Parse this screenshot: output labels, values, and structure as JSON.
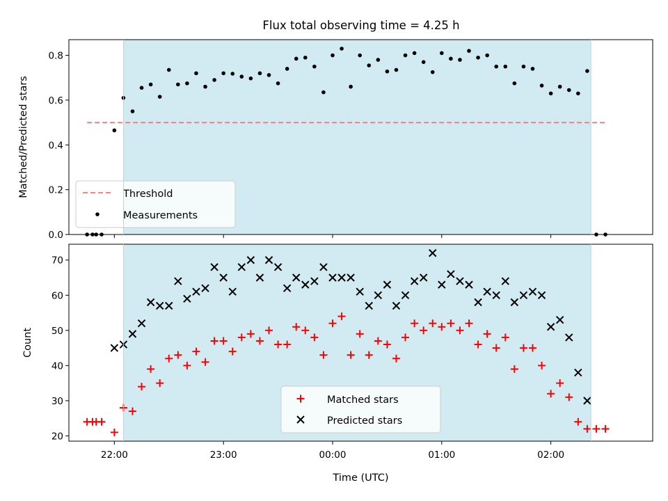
{
  "title": "Flux total observing time = 4.25 h",
  "colors": {
    "background": "#ffffff",
    "shaded_region": "#add8e6",
    "threshold_line": "#ff7f7f",
    "measurements": "#000000",
    "matched": "#ff0000",
    "predicted": "#000000"
  },
  "chart_data": [
    {
      "type": "scatter",
      "panel": "top",
      "ylabel": "Matched/Predicted stars",
      "ylim": [
        0,
        0.87
      ],
      "yticks": [
        0.0,
        0.2,
        0.4,
        0.6,
        0.8
      ],
      "ytick_labels": [
        "0.0",
        "0.2",
        "0.4",
        "0.6",
        "0.8"
      ],
      "xlim": [
        "21:35",
        "02:56"
      ],
      "xticks": [
        "22:00",
        "23:00",
        "00:00",
        "01:00",
        "02:00"
      ],
      "shaded_span": [
        "22:05",
        "02:22"
      ],
      "threshold": {
        "name": "Threshold",
        "y": 0.5,
        "x": [
          "21:45",
          "02:30"
        ]
      },
      "legend": [
        "Threshold",
        "Measurements"
      ],
      "legend_position": "lower-left",
      "series": [
        {
          "name": "Measurements",
          "marker": "dot",
          "x": [
            "21:45",
            "21:48",
            "21:50",
            "21:53",
            "22:00",
            "22:05",
            "22:10",
            "22:15",
            "22:20",
            "22:25",
            "22:30",
            "22:35",
            "22:40",
            "22:45",
            "22:50",
            "22:55",
            "23:00",
            "23:05",
            "23:10",
            "23:15",
            "23:20",
            "23:25",
            "23:30",
            "23:35",
            "23:40",
            "23:45",
            "23:50",
            "23:55",
            "00:00",
            "00:05",
            "00:10",
            "00:15",
            "00:20",
            "00:25",
            "00:30",
            "00:35",
            "00:40",
            "00:45",
            "00:50",
            "00:55",
            "01:00",
            "01:05",
            "01:10",
            "01:15",
            "01:20",
            "01:25",
            "01:30",
            "01:35",
            "01:40",
            "01:45",
            "01:50",
            "01:55",
            "02:00",
            "02:05",
            "02:10",
            "02:15",
            "02:20",
            "02:25",
            "02:30"
          ],
          "y": [
            0,
            0,
            0,
            0,
            0.465,
            0.61,
            0.55,
            0.655,
            0.67,
            0.615,
            0.735,
            0.67,
            0.675,
            0.72,
            0.66,
            0.69,
            0.72,
            0.718,
            0.705,
            0.697,
            0.72,
            0.712,
            0.675,
            0.74,
            0.785,
            0.79,
            0.75,
            0.635,
            0.8,
            0.83,
            0.66,
            0.8,
            0.755,
            0.78,
            0.728,
            0.735,
            0.8,
            0.81,
            0.77,
            0.725,
            0.81,
            0.785,
            0.78,
            0.82,
            0.79,
            0.8,
            0.75,
            0.75,
            0.675,
            0.75,
            0.74,
            0.665,
            0.63,
            0.66,
            0.645,
            0.63,
            0.73,
            0,
            0
          ]
        }
      ]
    },
    {
      "type": "scatter",
      "panel": "bottom",
      "xlabel": "Time (UTC)",
      "ylabel": "Count",
      "ylim": [
        18.5,
        74.5
      ],
      "yticks": [
        20,
        30,
        40,
        50,
        60,
        70
      ],
      "ytick_labels": [
        "20",
        "30",
        "40",
        "50",
        "60",
        "70"
      ],
      "xlim": [
        "21:35",
        "02:56"
      ],
      "xticks": [
        "22:00",
        "23:00",
        "00:00",
        "01:00",
        "02:00"
      ],
      "shaded_span": [
        "22:05",
        "02:22"
      ],
      "legend": [
        "Matched stars",
        "Predicted stars"
      ],
      "legend_position": "lower-center",
      "series": [
        {
          "name": "Matched stars",
          "marker": "plus",
          "x": [
            "21:45",
            "21:48",
            "21:50",
            "21:53",
            "22:00",
            "22:05",
            "22:10",
            "22:15",
            "22:20",
            "22:25",
            "22:30",
            "22:35",
            "22:40",
            "22:45",
            "22:50",
            "22:55",
            "23:00",
            "23:05",
            "23:10",
            "23:15",
            "23:20",
            "23:25",
            "23:30",
            "23:35",
            "23:40",
            "23:45",
            "23:50",
            "23:55",
            "00:00",
            "00:05",
            "00:10",
            "00:15",
            "00:20",
            "00:25",
            "00:30",
            "00:35",
            "00:40",
            "00:45",
            "00:50",
            "00:55",
            "01:00",
            "01:05",
            "01:10",
            "01:15",
            "01:20",
            "01:25",
            "01:30",
            "01:35",
            "01:40",
            "01:45",
            "01:50",
            "01:55",
            "02:00",
            "02:05",
            "02:10",
            "02:15",
            "02:20",
            "02:25",
            "02:30"
          ],
          "y": [
            24,
            24,
            24,
            24,
            21,
            28,
            27,
            34,
            39,
            35,
            42,
            43,
            40,
            44,
            41,
            47,
            47,
            44,
            48,
            49,
            47,
            50,
            46,
            46,
            51,
            50,
            48,
            43,
            52,
            54,
            43,
            49,
            43,
            47,
            46,
            42,
            48,
            52,
            50,
            52,
            51,
            52,
            50,
            52,
            46,
            49,
            45,
            48,
            39,
            45,
            45,
            40,
            32,
            35,
            31,
            24,
            22,
            22,
            22
          ]
        },
        {
          "name": "Predicted stars",
          "marker": "x",
          "x": [
            "22:00",
            "22:05",
            "22:10",
            "22:15",
            "22:20",
            "22:25",
            "22:30",
            "22:35",
            "22:40",
            "22:45",
            "22:50",
            "22:55",
            "23:00",
            "23:05",
            "23:10",
            "23:15",
            "23:20",
            "23:25",
            "23:30",
            "23:35",
            "23:40",
            "23:45",
            "23:50",
            "23:55",
            "00:00",
            "00:05",
            "00:10",
            "00:15",
            "00:20",
            "00:25",
            "00:30",
            "00:35",
            "00:40",
            "00:45",
            "00:50",
            "00:55",
            "01:00",
            "01:05",
            "01:10",
            "01:15",
            "01:20",
            "01:25",
            "01:30",
            "01:35",
            "01:40",
            "01:45",
            "01:50",
            "01:55",
            "02:00",
            "02:05",
            "02:10",
            "02:15",
            "02:20"
          ],
          "y": [
            45,
            46,
            49,
            52,
            58,
            57,
            57,
            64,
            59,
            61,
            62,
            68,
            65,
            61,
            68,
            70,
            65,
            70,
            68,
            62,
            65,
            63,
            64,
            68,
            65,
            65,
            65,
            61,
            57,
            60,
            63,
            57,
            60,
            64,
            65,
            72,
            63,
            66,
            64,
            63,
            58,
            61,
            60,
            64,
            58,
            60,
            61,
            60,
            51,
            53,
            48,
            38,
            30
          ]
        }
      ]
    }
  ]
}
